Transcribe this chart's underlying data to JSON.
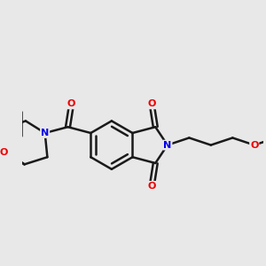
{
  "background_color": "#e8e8e8",
  "bond_color": "#1a1a1a",
  "nitrogen_color": "#0000ee",
  "oxygen_color": "#ee0000",
  "bond_width": 1.8,
  "figsize": [
    3.0,
    3.0
  ],
  "dpi": 100,
  "xlim": [
    -1.5,
    8.5
  ],
  "ylim": [
    -2.5,
    3.5
  ]
}
